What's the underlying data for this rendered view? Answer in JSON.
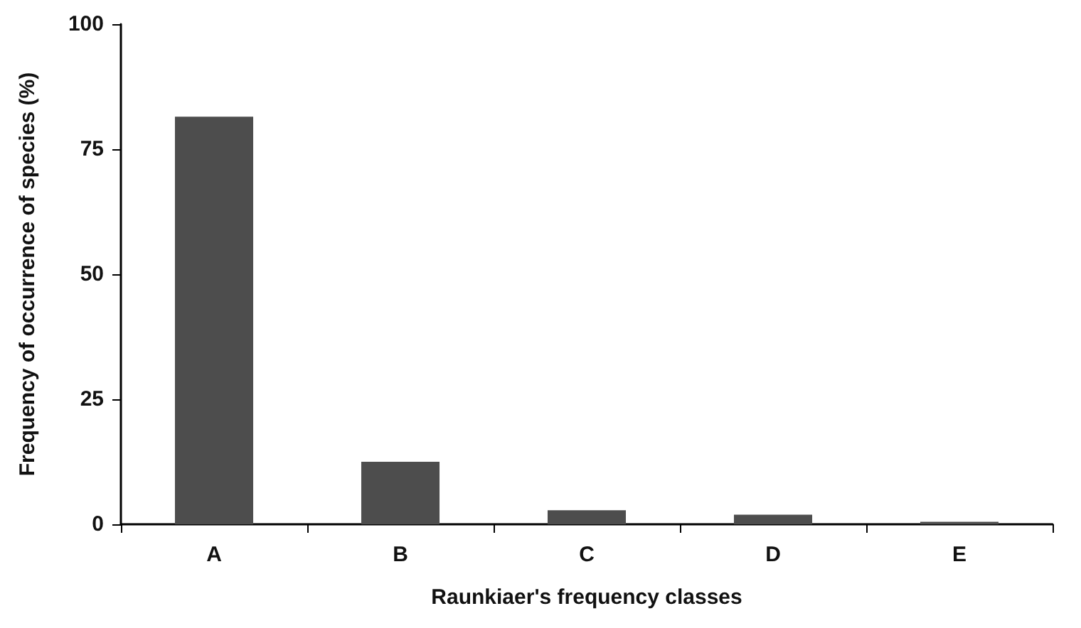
{
  "chart_data": {
    "type": "bar",
    "xlabel": "Raunkiaer's frequency classes",
    "ylabel": "Frequency of occurrence of species (%)",
    "categories": [
      "A",
      "B",
      "C",
      "D",
      "E"
    ],
    "values": [
      81.5,
      12.5,
      2.8,
      1.9,
      0.5
    ],
    "color": "#4d4d4d",
    "ylim": [
      0,
      100
    ],
    "yticks": [
      0,
      25,
      50,
      75,
      100
    ],
    "grid": false
  }
}
